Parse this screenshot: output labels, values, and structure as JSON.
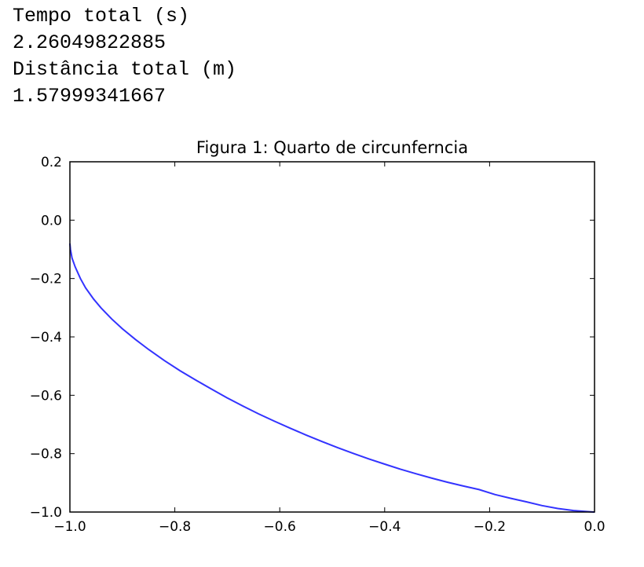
{
  "output_lines": [
    "Tempo total (s)",
    "2.26049822885",
    "Distância total (m)",
    "1.57999341667"
  ],
  "chart_data": {
    "type": "line",
    "title": "Figura 1: Quarto de circunferncia",
    "xlabel": "",
    "ylabel": "",
    "xlim": [
      -1.0,
      0.0
    ],
    "ylim": [
      -1.0,
      0.2
    ],
    "xticks": [
      -1.0,
      -0.8,
      -0.6,
      -0.4,
      -0.2,
      0.0
    ],
    "yticks": [
      0.2,
      0.0,
      -0.2,
      -0.4,
      -0.6,
      -0.8,
      -1.0
    ],
    "xtick_labels": [
      "−1.0",
      "−0.8",
      "−0.6",
      "−0.4",
      "−0.2",
      "0.0"
    ],
    "ytick_labels": [
      "0.2",
      "0.0",
      "−0.2",
      "−0.4",
      "−0.6",
      "−0.8",
      "−1.0"
    ],
    "grid": false,
    "line_color": "#3333ff",
    "series": [
      {
        "x": [
          -1.0,
          -0.999,
          -0.996,
          -0.99,
          -0.98,
          -0.97,
          -0.955,
          -0.94,
          -0.92,
          -0.9,
          -0.875,
          -0.85,
          -0.82,
          -0.79,
          -0.76,
          -0.73,
          -0.7,
          -0.67,
          -0.64,
          -0.61,
          -0.58,
          -0.55,
          -0.52,
          -0.49,
          -0.46,
          -0.43,
          -0.4,
          -0.37,
          -0.34,
          -0.31,
          -0.28,
          -0.25,
          -0.22,
          -0.19,
          -0.16,
          -0.13,
          -0.1,
          -0.07,
          -0.04,
          -0.01,
          0.0
        ],
        "y": [
          -0.08,
          -0.1,
          -0.13,
          -0.16,
          -0.2,
          -0.232,
          -0.27,
          -0.302,
          -0.339,
          -0.372,
          -0.409,
          -0.443,
          -0.481,
          -0.516,
          -0.548,
          -0.579,
          -0.609,
          -0.637,
          -0.664,
          -0.689,
          -0.713,
          -0.736,
          -0.758,
          -0.779,
          -0.799,
          -0.818,
          -0.836,
          -0.853,
          -0.869,
          -0.884,
          -0.898,
          -0.911,
          -0.923,
          -0.94,
          -0.953,
          -0.965,
          -0.978,
          -0.988,
          -0.995,
          -0.999,
          -1.0
        ]
      }
    ]
  }
}
